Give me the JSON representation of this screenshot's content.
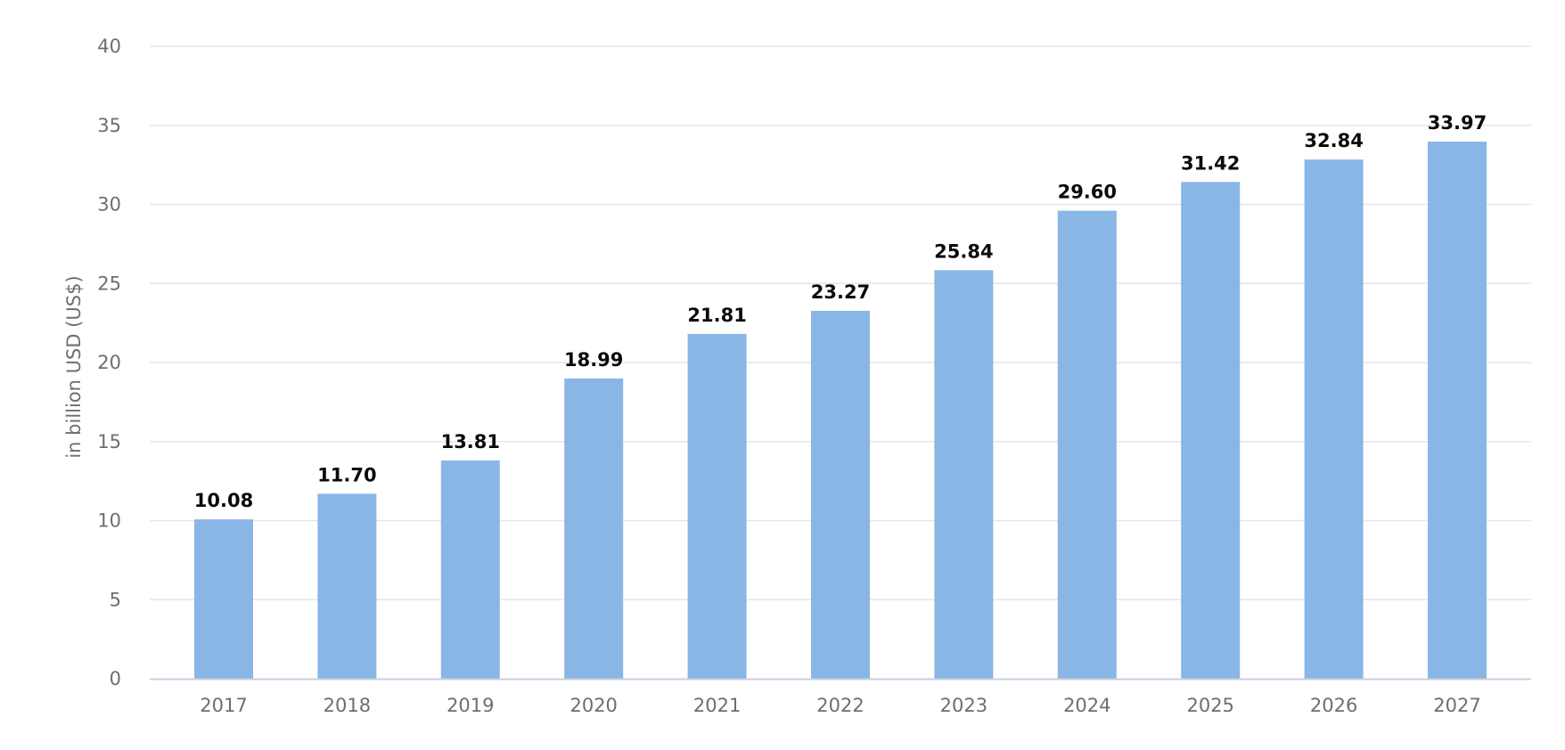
{
  "chart_data": {
    "type": "bar",
    "title": "",
    "xlabel": "",
    "ylabel": "in billion USD (US$)",
    "categories": [
      "2017",
      "2018",
      "2019",
      "2020",
      "2021",
      "2022",
      "2023",
      "2024",
      "2025",
      "2026",
      "2027"
    ],
    "series": [
      {
        "values": [
          10.08,
          11.7,
          13.81,
          18.99,
          21.81,
          23.27,
          25.84,
          29.6,
          31.42,
          32.84,
          33.97
        ],
        "labels": [
          "10.08",
          "11.70",
          "13.81",
          "18.99",
          "21.81",
          "23.27",
          "25.84",
          "29.60",
          "31.42",
          "32.84",
          "33.97"
        ],
        "color": "#8ab6e6"
      }
    ],
    "ylim": [
      0,
      40
    ],
    "yticks": [
      0,
      5,
      10,
      15,
      20,
      25,
      30,
      35,
      40
    ],
    "grid": true,
    "legend": "none"
  }
}
